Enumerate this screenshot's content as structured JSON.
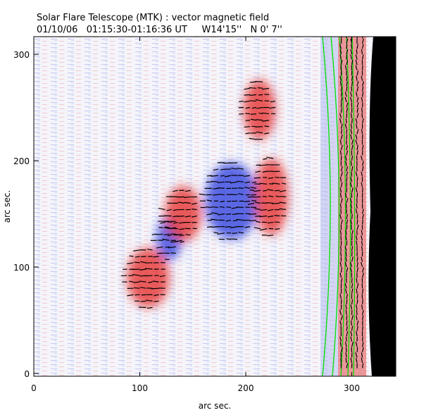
{
  "chart_data": {
    "type": "heatmap",
    "title": "Solar Flare Telescope (MTK) : vector magnetic field",
    "subtitle": "01/10/06   01:15:30-01:16:36 UT     W14'15''   N 0' 7''",
    "xlabel": "arc sec.",
    "ylabel": "arc sec.",
    "xlim": [
      0,
      341
    ],
    "ylim": [
      0,
      316
    ],
    "xticks": [
      "0",
      "100",
      "200",
      "300"
    ],
    "yticks": [
      "0",
      "100",
      "200",
      "300"
    ],
    "xtick_values": [
      0,
      100,
      200,
      300
    ],
    "ytick_values": [
      0,
      100,
      200,
      300
    ],
    "colors": {
      "positive": "#e84040",
      "negative": "#4050e0",
      "limb_contour": "#00e000",
      "off_limb": "#000000"
    },
    "features": [
      {
        "polarity": "negative",
        "cx": 128,
        "cy": 127,
        "rx": 12,
        "ry": 20
      },
      {
        "polarity": "negative",
        "cx": 187,
        "cy": 162,
        "rx": 25,
        "ry": 36
      },
      {
        "polarity": "positive",
        "cx": 108,
        "cy": 90,
        "rx": 20,
        "ry": 28
      },
      {
        "polarity": "positive",
        "cx": 141,
        "cy": 150,
        "rx": 17,
        "ry": 26
      },
      {
        "polarity": "positive",
        "cx": 224,
        "cy": 166,
        "rx": 16,
        "ry": 36
      },
      {
        "polarity": "positive",
        "cx": 213,
        "cy": 248,
        "rx": 15,
        "ry": 28
      }
    ],
    "limb_x": 315
  }
}
